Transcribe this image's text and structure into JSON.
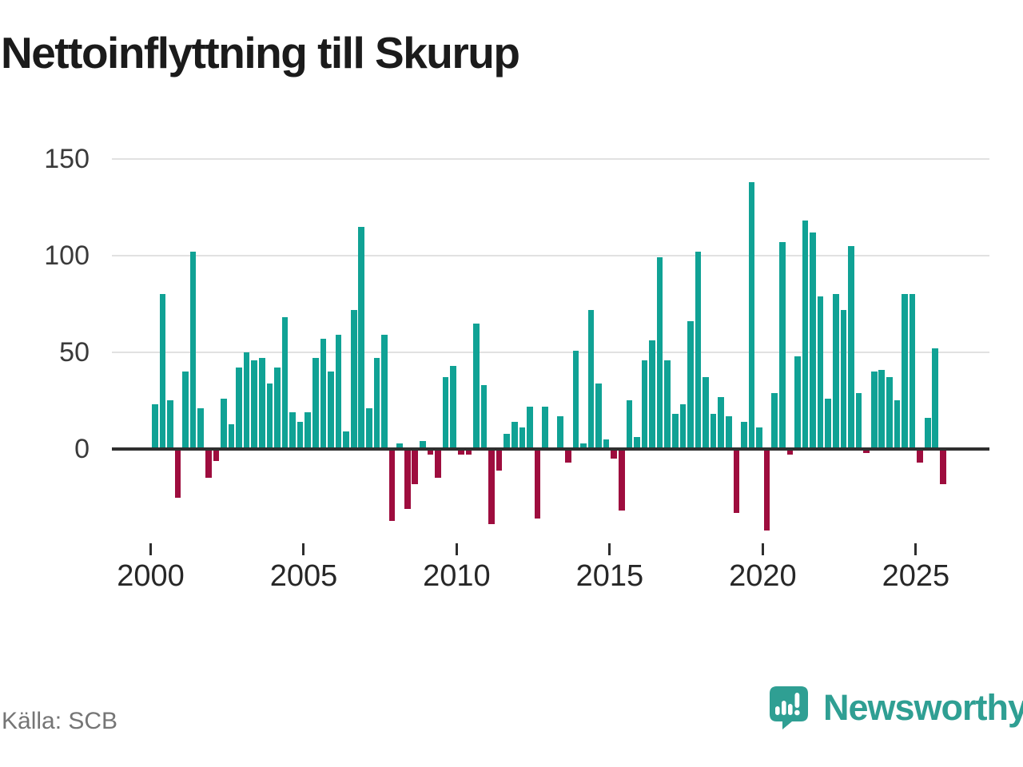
{
  "title": "Nettoinflyttning till Skurup",
  "source": "Källa: SCB",
  "brand": {
    "name": "Newsworthy"
  },
  "colors": {
    "positive": "#10a295",
    "negative": "#9e0d3e",
    "axis": "#2f2f2f",
    "grid": "#e1e1e1",
    "tick": "#2e2e2e",
    "brand_teal": "#2f9f93",
    "title_text": "#1b1b1b",
    "source_text": "#757575"
  },
  "chart_data": {
    "type": "bar",
    "title": "Nettoinflyttning till Skurup",
    "xlabel": "",
    "ylabel": "",
    "frequency": "quarterly",
    "start_year": 2000,
    "start_quarter": "2000Q1",
    "end_quarter": "2025Q4",
    "y_ticks": [
      0,
      50,
      100,
      150
    ],
    "x_ticks": [
      2000,
      2005,
      2010,
      2015,
      2020,
      2025
    ],
    "ylim": [
      -50,
      155
    ],
    "grid": "horizontal",
    "legend": "none",
    "series": [
      {
        "name": "Nettoinflyttning",
        "values": [
          23,
          80,
          25,
          -25,
          40,
          102,
          21,
          -15,
          -6,
          26,
          13,
          42,
          50,
          46,
          47,
          34,
          42,
          68,
          19,
          14,
          19,
          47,
          57,
          40,
          59,
          9,
          72,
          115,
          21,
          47,
          59,
          -37,
          3,
          -31,
          -18,
          4,
          -3,
          -15,
          37,
          43,
          -3,
          -3,
          65,
          33,
          -39,
          -11,
          8,
          14,
          11,
          22,
          -36,
          22,
          0,
          17,
          -7,
          51,
          3,
          72,
          34,
          5,
          -5,
          -32,
          25,
          6,
          46,
          56,
          99,
          46,
          18,
          23,
          66,
          102,
          37,
          18,
          27,
          17,
          -33,
          14,
          138,
          11,
          -42,
          29,
          107,
          -3,
          48,
          118,
          112,
          79,
          26,
          80,
          72,
          105,
          29,
          -2,
          40,
          41,
          37,
          25,
          80,
          80,
          -7,
          16,
          52,
          -18
        ]
      }
    ]
  }
}
